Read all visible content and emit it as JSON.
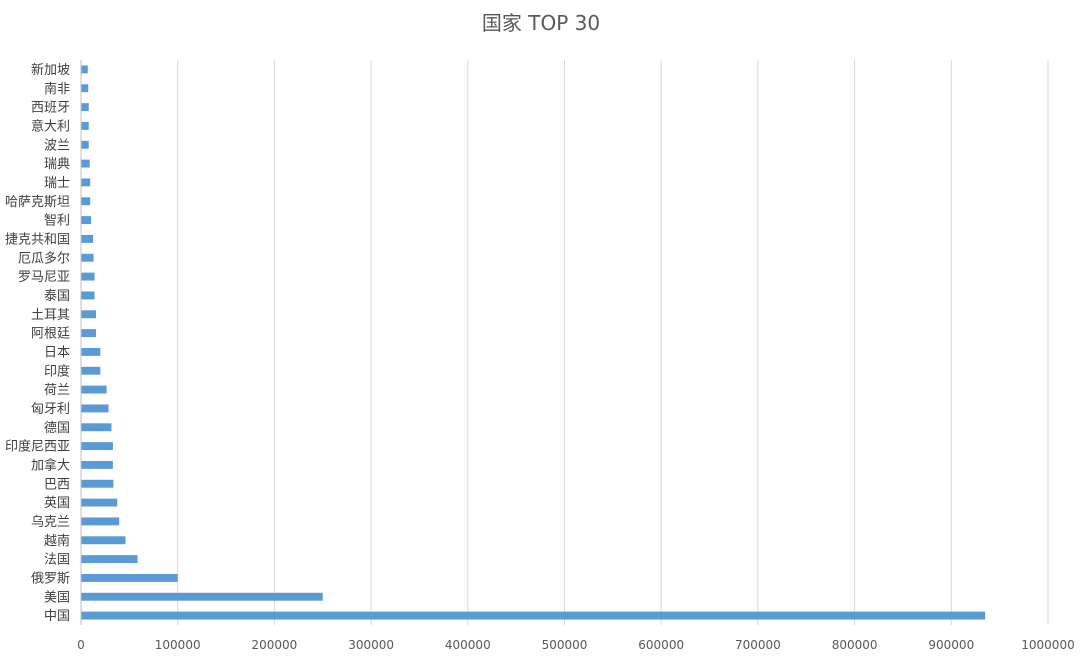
{
  "chart_data": {
    "type": "bar",
    "orientation": "horizontal",
    "title": "国家 TOP 30",
    "bar_color": "#5b9bd5",
    "categories": [
      "新加坡",
      "南非",
      "西班牙",
      "意大利",
      "波兰",
      "瑞典",
      "瑞士",
      "哈萨克斯坦",
      "智利",
      "捷克共和国",
      "厄瓜多尔",
      "罗马尼亚",
      "泰国",
      "土耳其",
      "阿根廷",
      "日本",
      "印度",
      "荷兰",
      "匈牙利",
      "德国",
      "印度尼西亚",
      "加拿大",
      "巴西",
      "英国",
      "乌克兰",
      "越南",
      "法国",
      "俄罗斯",
      "美国",
      "中国"
    ],
    "values": [
      7000,
      7500,
      8000,
      8000,
      8000,
      9000,
      9500,
      9500,
      10500,
      12500,
      13000,
      14000,
      14000,
      15500,
      15500,
      20000,
      20000,
      26500,
      28500,
      31500,
      33000,
      33000,
      33500,
      37500,
      39500,
      46000,
      58500,
      100000,
      250000,
      935000
    ],
    "xlim": [
      0,
      1000000
    ],
    "xticks": [
      "0",
      "100000",
      "200000",
      "300000",
      "400000",
      "500000",
      "600000",
      "700000",
      "800000",
      "900000",
      "1000000"
    ],
    "grid": true,
    "legend": "none"
  }
}
